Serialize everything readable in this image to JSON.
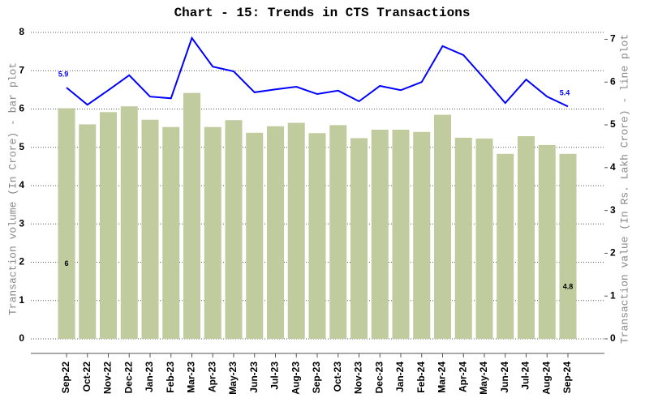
{
  "chart_data": {
    "type": "bar-line",
    "title": "Chart - 15: Trends in CTS Transactions",
    "y_label": "Transaction volume (In Crore) - bar plot",
    "y2_label": "Transaction value (In Rs. Lakh Crore) - line plot",
    "categories": [
      "Sep-22",
      "Oct-22",
      "Nov-22",
      "Dec-22",
      "Jan-23",
      "Feb-23",
      "Mar-23",
      "Apr-23",
      "May-23",
      "Jun-23",
      "Jul-23",
      "Aug-23",
      "Sep-23",
      "Oct-23",
      "Nov-23",
      "Dec-23",
      "Jan-24",
      "Feb-24",
      "Mar-24",
      "Apr-24",
      "May-24",
      "Jun-24",
      "Jul-24",
      "Aug-24",
      "Sep-24"
    ],
    "series": [
      {
        "type": "bar",
        "color": "#c0cc9e",
        "values": [
          6.02,
          5.6,
          5.92,
          6.07,
          5.72,
          5.53,
          6.42,
          5.53,
          5.71,
          5.38,
          5.55,
          5.64,
          5.37,
          5.58,
          5.24,
          5.46,
          5.46,
          5.4,
          5.85,
          5.25,
          5.23,
          4.83,
          5.29,
          5.06,
          4.83
        ],
        "value_labels": [
          "6",
          null,
          null,
          null,
          null,
          null,
          null,
          null,
          null,
          null,
          null,
          null,
          null,
          null,
          null,
          null,
          null,
          null,
          null,
          null,
          null,
          null,
          null,
          null,
          "4.8"
        ]
      },
      {
        "type": "line",
        "axis": "y2",
        "color": "#0000ff",
        "values": [
          5.87,
          5.47,
          5.81,
          6.16,
          5.66,
          5.62,
          7.03,
          6.36,
          6.25,
          5.76,
          5.83,
          5.89,
          5.72,
          5.8,
          5.55,
          5.91,
          5.81,
          6.0,
          6.84,
          6.63,
          6.08,
          5.51,
          6.06,
          5.66,
          5.43
        ],
        "value_labels": [
          "5.9",
          null,
          null,
          null,
          null,
          null,
          null,
          null,
          null,
          null,
          null,
          null,
          null,
          null,
          null,
          null,
          null,
          null,
          null,
          null,
          null,
          null,
          null,
          null,
          "5.4"
        ]
      }
    ],
    "ylim": [
      0,
      8
    ],
    "yticks": [
      0,
      1,
      2,
      3,
      4,
      5,
      6,
      7,
      8
    ],
    "y2lim": [
      0,
      7.16
    ],
    "y2ticks": [
      0,
      1,
      2,
      3,
      4,
      5,
      6,
      7
    ],
    "grid": true
  }
}
